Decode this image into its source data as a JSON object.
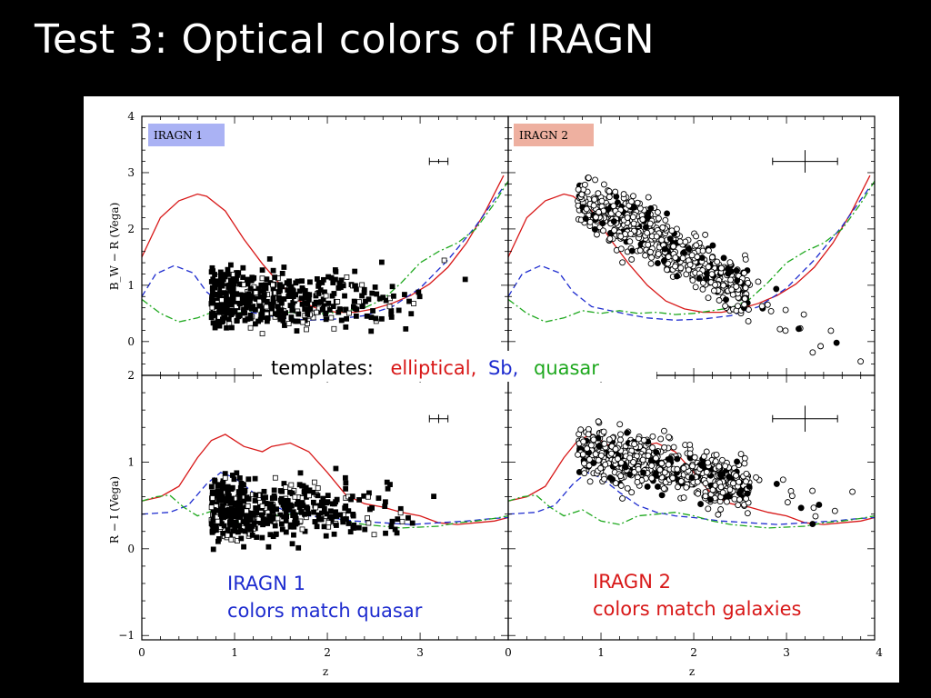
{
  "slide": {
    "title": "Test 3: Optical colors of IRAGN"
  },
  "colors": {
    "elliptical": "#d81818",
    "sb": "#1e2ccf",
    "quasar": "#1ea81e",
    "label1_bg": "#aab2f4",
    "label2_bg": "#eeb0a0"
  },
  "annotations": {
    "templates_prefix": "templates:",
    "templates_elliptical": "elliptical,",
    "templates_sb": "Sb,",
    "templates_quasar": "quasar",
    "iragn1_line1": "IRAGN 1",
    "iragn1_line2": "colors match quasar",
    "iragn2_line1": "IRAGN 2",
    "iragn2_line2": "colors match galaxies"
  },
  "chart_data": [
    {
      "type": "scatter",
      "panel": "top-left",
      "label": "IRAGN 1",
      "ylabel": "B_W − R (Vega)",
      "xlim": [
        0,
        3.95
      ],
      "ylim": [
        -0.6,
        4
      ],
      "yticks": [
        0,
        1,
        2,
        3,
        4
      ],
      "xticks": [],
      "error_bar": {
        "x": 3.2,
        "y": 3.2,
        "xerr": 0.1,
        "yerr": 0.04
      },
      "templates": [
        {
          "name": "elliptical",
          "x": [
            0,
            0.2,
            0.4,
            0.6,
            0.7,
            0.9,
            1.1,
            1.3,
            1.5,
            1.7,
            1.9,
            2.1,
            2.3,
            2.5,
            2.7,
            2.9,
            3.1,
            3.3,
            3.5,
            3.7,
            3.9
          ],
          "y": [
            1.5,
            2.2,
            2.5,
            2.62,
            2.58,
            2.32,
            1.82,
            1.38,
            1.0,
            0.72,
            0.58,
            0.52,
            0.52,
            0.58,
            0.68,
            0.82,
            1.02,
            1.32,
            1.75,
            2.3,
            2.95
          ]
        },
        {
          "name": "Sb",
          "x": [
            0,
            0.15,
            0.35,
            0.55,
            0.7,
            0.9,
            1.1,
            1.3,
            1.5,
            1.8,
            2.1,
            2.4,
            2.7,
            3.0,
            3.3,
            3.6,
            3.9
          ],
          "y": [
            0.8,
            1.2,
            1.35,
            1.22,
            0.88,
            0.62,
            0.55,
            0.48,
            0.42,
            0.38,
            0.4,
            0.46,
            0.62,
            0.95,
            1.45,
            2.05,
            2.75
          ]
        },
        {
          "name": "quasar",
          "x": [
            0,
            0.2,
            0.4,
            0.6,
            0.8,
            1.0,
            1.2,
            1.4,
            1.6,
            1.8,
            2.0,
            2.2,
            2.4,
            2.6,
            2.8,
            3.0,
            3.2,
            3.4,
            3.6,
            3.8,
            3.95
          ],
          "y": [
            0.75,
            0.5,
            0.35,
            0.42,
            0.55,
            0.5,
            0.55,
            0.5,
            0.52,
            0.48,
            0.5,
            0.55,
            0.6,
            0.75,
            1.05,
            1.4,
            1.6,
            1.75,
            2.0,
            2.45,
            2.85
          ]
        }
      ]
    },
    {
      "type": "scatter",
      "panel": "top-right",
      "label": "IRAGN 2",
      "xlim": [
        0,
        3.95
      ],
      "ylim": [
        -0.6,
        4
      ],
      "xticks": [],
      "yticks": [],
      "error_bar": {
        "x": 3.2,
        "y": 3.2,
        "xerr": 0.35,
        "yerr": 0.2
      },
      "templates": [
        {
          "name": "elliptical",
          "x": [
            0,
            0.2,
            0.4,
            0.6,
            0.7,
            0.9,
            1.1,
            1.3,
            1.5,
            1.7,
            1.9,
            2.1,
            2.3,
            2.5,
            2.7,
            2.9,
            3.1,
            3.3,
            3.5,
            3.7,
            3.9
          ],
          "y": [
            1.5,
            2.2,
            2.5,
            2.62,
            2.58,
            2.32,
            1.82,
            1.38,
            1.0,
            0.72,
            0.58,
            0.52,
            0.52,
            0.58,
            0.68,
            0.82,
            1.02,
            1.32,
            1.75,
            2.3,
            2.95
          ]
        },
        {
          "name": "Sb",
          "x": [
            0,
            0.15,
            0.35,
            0.55,
            0.7,
            0.9,
            1.1,
            1.3,
            1.5,
            1.8,
            2.1,
            2.4,
            2.7,
            3.0,
            3.3,
            3.6,
            3.9
          ],
          "y": [
            0.8,
            1.2,
            1.35,
            1.22,
            0.88,
            0.62,
            0.55,
            0.48,
            0.42,
            0.38,
            0.4,
            0.46,
            0.62,
            0.95,
            1.45,
            2.05,
            2.75
          ]
        },
        {
          "name": "quasar",
          "x": [
            0,
            0.2,
            0.4,
            0.6,
            0.8,
            1.0,
            1.2,
            1.4,
            1.6,
            1.8,
            2.0,
            2.2,
            2.4,
            2.6,
            2.8,
            3.0,
            3.2,
            3.4,
            3.6,
            3.8,
            3.95
          ],
          "y": [
            0.75,
            0.5,
            0.35,
            0.42,
            0.55,
            0.5,
            0.55,
            0.5,
            0.52,
            0.48,
            0.5,
            0.55,
            0.6,
            0.75,
            1.05,
            1.4,
            1.6,
            1.75,
            2.0,
            2.45,
            2.85
          ]
        }
      ]
    },
    {
      "type": "scatter",
      "panel": "bottom-left",
      "ylabel": "R − I (Vega)",
      "xlabel": "z",
      "xlim": [
        0,
        3.95
      ],
      "ylim": [
        -1.05,
        2
      ],
      "yticks": [
        -1,
        0,
        1,
        2
      ],
      "xticks": [
        0,
        1,
        2,
        3
      ],
      "error_bar": {
        "x": 3.2,
        "y": 1.5,
        "xerr": 0.1,
        "yerr": 0.05
      },
      "templates": [
        {
          "name": "elliptical",
          "x": [
            0,
            0.2,
            0.4,
            0.6,
            0.75,
            0.9,
            1.1,
            1.3,
            1.4,
            1.6,
            1.8,
            2.0,
            2.2,
            2.4,
            2.6,
            2.8,
            3.0,
            3.2,
            3.4,
            3.6,
            3.8,
            3.95
          ],
          "y": [
            0.55,
            0.6,
            0.72,
            1.05,
            1.25,
            1.32,
            1.18,
            1.12,
            1.18,
            1.22,
            1.12,
            0.88,
            0.62,
            0.52,
            0.48,
            0.42,
            0.38,
            0.3,
            0.28,
            0.3,
            0.32,
            0.36
          ]
        },
        {
          "name": "Sb",
          "x": [
            0,
            0.3,
            0.5,
            0.7,
            0.85,
            1.0,
            1.2,
            1.4,
            1.6,
            1.8,
            2.0,
            2.3,
            2.6,
            2.9,
            3.2,
            3.5,
            3.8,
            3.95
          ],
          "y": [
            0.4,
            0.42,
            0.5,
            0.75,
            0.88,
            0.82,
            0.65,
            0.5,
            0.42,
            0.38,
            0.36,
            0.32,
            0.3,
            0.28,
            0.3,
            0.32,
            0.35,
            0.36
          ]
        },
        {
          "name": "quasar",
          "x": [
            0,
            0.15,
            0.3,
            0.45,
            0.6,
            0.8,
            1.0,
            1.2,
            1.4,
            1.6,
            1.8,
            2.0,
            2.2,
            2.4,
            2.6,
            2.8,
            3.0,
            3.2,
            3.4,
            3.6,
            3.8,
            3.95
          ],
          "y": [
            0.55,
            0.6,
            0.62,
            0.48,
            0.38,
            0.45,
            0.32,
            0.28,
            0.38,
            0.4,
            0.42,
            0.38,
            0.32,
            0.28,
            0.26,
            0.24,
            0.25,
            0.26,
            0.3,
            0.32,
            0.35,
            0.38
          ]
        }
      ]
    },
    {
      "type": "scatter",
      "panel": "bottom-right",
      "xlabel": "z",
      "xlim": [
        0,
        3.95
      ],
      "ylim": [
        -1.05,
        2
      ],
      "yticks": [],
      "xticks": [
        0,
        1,
        2,
        3,
        4
      ],
      "error_bar": {
        "x": 3.2,
        "y": 1.5,
        "xerr": 0.35,
        "yerr": 0.15
      },
      "templates": [
        {
          "name": "elliptical",
          "x": [
            0,
            0.2,
            0.4,
            0.6,
            0.75,
            0.9,
            1.1,
            1.3,
            1.4,
            1.6,
            1.8,
            2.0,
            2.2,
            2.4,
            2.6,
            2.8,
            3.0,
            3.2,
            3.4,
            3.6,
            3.8,
            3.95
          ],
          "y": [
            0.55,
            0.6,
            0.72,
            1.05,
            1.25,
            1.32,
            1.18,
            1.12,
            1.18,
            1.22,
            1.12,
            0.88,
            0.62,
            0.52,
            0.48,
            0.42,
            0.38,
            0.3,
            0.28,
            0.3,
            0.32,
            0.36
          ]
        },
        {
          "name": "Sb",
          "x": [
            0,
            0.3,
            0.5,
            0.7,
            0.85,
            1.0,
            1.2,
            1.4,
            1.6,
            1.8,
            2.0,
            2.3,
            2.6,
            2.9,
            3.2,
            3.5,
            3.8,
            3.95
          ],
          "y": [
            0.4,
            0.42,
            0.5,
            0.75,
            0.88,
            0.82,
            0.65,
            0.5,
            0.42,
            0.38,
            0.36,
            0.32,
            0.3,
            0.28,
            0.3,
            0.32,
            0.35,
            0.36
          ]
        },
        {
          "name": "quasar",
          "x": [
            0,
            0.15,
            0.3,
            0.45,
            0.6,
            0.8,
            1.0,
            1.2,
            1.4,
            1.6,
            1.8,
            2.0,
            2.2,
            2.4,
            2.6,
            2.8,
            3.0,
            3.2,
            3.4,
            3.6,
            3.8,
            3.95
          ],
          "y": [
            0.55,
            0.6,
            0.62,
            0.48,
            0.38,
            0.45,
            0.32,
            0.28,
            0.38,
            0.4,
            0.42,
            0.38,
            0.32,
            0.28,
            0.26,
            0.24,
            0.25,
            0.26,
            0.3,
            0.32,
            0.35,
            0.38
          ]
        }
      ]
    }
  ]
}
